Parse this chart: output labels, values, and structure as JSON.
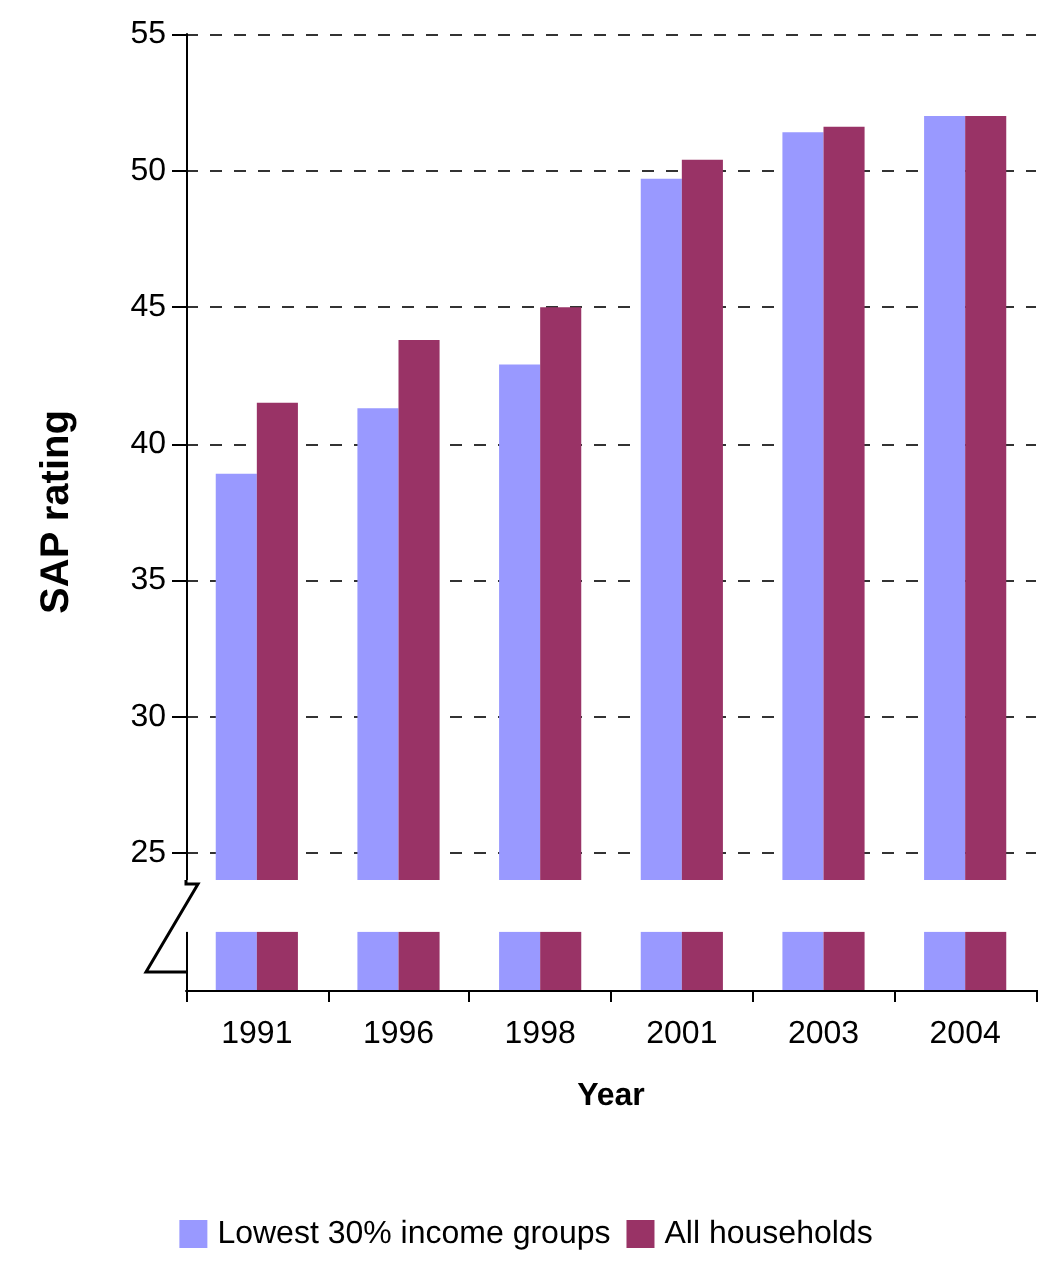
{
  "chart_data": {
    "type": "bar",
    "xlabel": "Year",
    "ylabel": "SAP rating",
    "categories": [
      "1991",
      "1996",
      "1998",
      "2001",
      "2003",
      "2004"
    ],
    "series": [
      {
        "name": "Lowest 30% income groups",
        "color": "#9999ff",
        "values": [
          38.9,
          41.3,
          42.9,
          49.7,
          51.4,
          52.0
        ]
      },
      {
        "name": "All households",
        "color": "#993366",
        "values": [
          41.5,
          43.8,
          45.0,
          50.4,
          51.6,
          52.0
        ]
      }
    ],
    "ylim": [
      20,
      55
    ],
    "yticks": [
      25,
      30,
      35,
      40,
      45,
      50,
      55
    ],
    "grid": "y",
    "legend": "bottom"
  }
}
